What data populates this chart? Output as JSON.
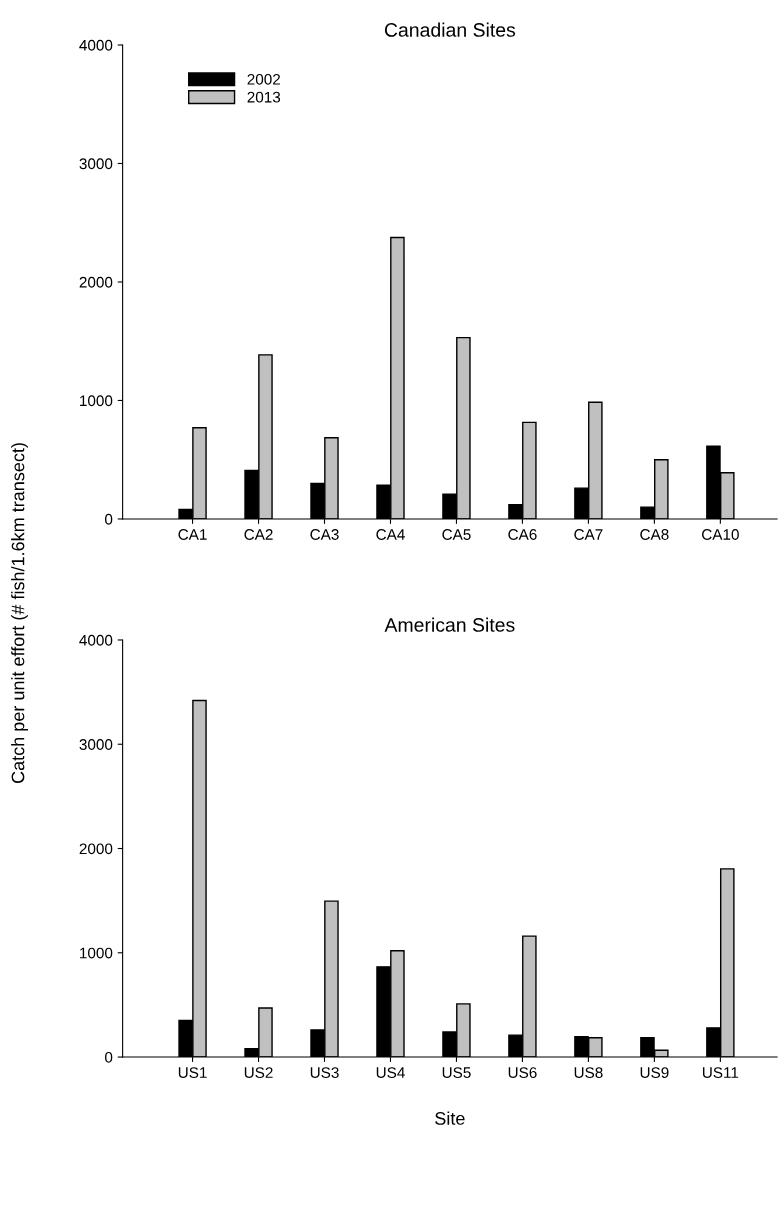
{
  "chart_data": [
    {
      "type": "bar",
      "title": "Canadian Sites",
      "ylabel": "Catch per unit effort (# fish/1.6km transect)",
      "categories": [
        "CA1",
        "CA2",
        "CA3",
        "CA4",
        "CA5",
        "CA6",
        "CA7",
        "CA8",
        "CA10"
      ],
      "series": [
        {
          "name": "2002",
          "color": "#000000",
          "values": [
            80,
            410,
            300,
            285,
            210,
            120,
            260,
            100,
            615
          ]
        },
        {
          "name": "2013",
          "color": "#c0c0c0",
          "values": [
            770,
            1385,
            685,
            2375,
            1530,
            815,
            985,
            500,
            390
          ]
        }
      ],
      "ylim": [
        0,
        4000
      ],
      "yticks": [
        0,
        1000,
        2000,
        3000,
        4000
      ],
      "grid": false,
      "legend": "top left"
    },
    {
      "type": "bar",
      "title": "American Sites",
      "xlabel": "Site",
      "categories": [
        "US1",
        "US2",
        "US3",
        "US4",
        "US5",
        "US6",
        "US8",
        "US9",
        "US11"
      ],
      "series": [
        {
          "color": "#000000",
          "values": [
            350,
            80,
            260,
            865,
            240,
            210,
            195,
            185,
            280
          ]
        },
        {
          "color": "#c0c0c0",
          "values": [
            3420,
            470,
            1495,
            1020,
            510,
            1160,
            185,
            65,
            1805
          ]
        }
      ],
      "ylim": [
        0,
        4000
      ],
      "yticks": [
        0,
        1000,
        2000,
        3000,
        4000
      ],
      "grid": false
    }
  ]
}
